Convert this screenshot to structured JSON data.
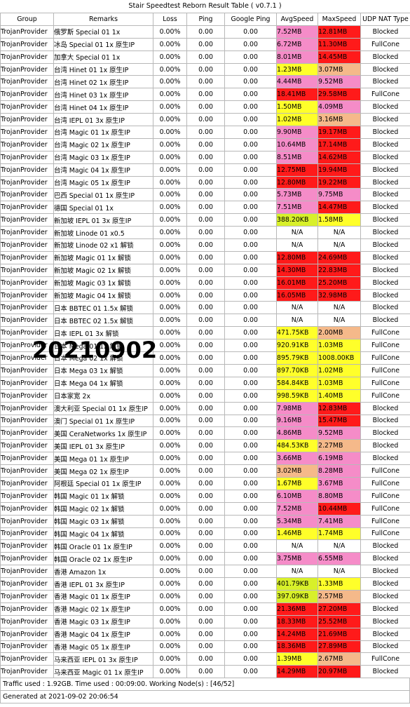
{
  "title": "Stair Speedtest Reborn Result Table ( v0.7.1 )",
  "columns": [
    "Group",
    "Remarks",
    "Loss",
    "Ping",
    "Google Ping",
    "AvgSpeed",
    "MaxSpeed",
    "UDP NAT Type"
  ],
  "colors": {
    "red": "#ff1a1a",
    "pink": "#f58cc8",
    "yellow": "#ffff2a",
    "light_yellow": "#ffff66",
    "lime": "#d8f02a",
    "orange": "#f5b98a",
    "white": "#ffffff"
  },
  "rows": [
    {
      "group": "TrojanProvider",
      "remarks": "俄罗斯 Special 01 1x",
      "loss": "0.00%",
      "ping": "0.00",
      "gping": "0.00",
      "avg": "7.52MB",
      "avg_color": "pink",
      "max": "12.81MB",
      "max_color": "red",
      "nat": "Blocked"
    },
    {
      "group": "TrojanProvider",
      "remarks": "冰岛 Special 01 1x 原生IP",
      "loss": "0.00%",
      "ping": "0.00",
      "gping": "0.00",
      "avg": "6.72MB",
      "avg_color": "pink",
      "max": "11.30MB",
      "max_color": "red",
      "nat": "FullCone"
    },
    {
      "group": "TrojanProvider",
      "remarks": "加拿大 Special 01 1x",
      "loss": "0.00%",
      "ping": "0.00",
      "gping": "0.00",
      "avg": "8.01MB",
      "avg_color": "pink",
      "max": "14.45MB",
      "max_color": "red",
      "nat": "Blocked"
    },
    {
      "group": "TrojanProvider",
      "remarks": "台湾 Hinet 01 1x 原生IP",
      "loss": "0.00%",
      "ping": "0.00",
      "gping": "0.00",
      "avg": "1.23MB",
      "avg_color": "yellow",
      "max": "3.07MB",
      "max_color": "orange",
      "nat": "Blocked"
    },
    {
      "group": "TrojanProvider",
      "remarks": "台湾 Hinet 02 1x 原生IP",
      "loss": "0.00%",
      "ping": "0.00",
      "gping": "0.00",
      "avg": "4.44MB",
      "avg_color": "pink",
      "max": "9.52MB",
      "max_color": "pink",
      "nat": "Blocked"
    },
    {
      "group": "TrojanProvider",
      "remarks": "台湾 Hinet 03 1x 原生IP",
      "loss": "0.00%",
      "ping": "0.00",
      "gping": "0.00",
      "avg": "18.41MB",
      "avg_color": "red",
      "max": "29.58MB",
      "max_color": "red",
      "nat": "FullCone"
    },
    {
      "group": "TrojanProvider",
      "remarks": "台湾 Hinet 04 1x 原生IP",
      "loss": "0.00%",
      "ping": "0.00",
      "gping": "0.00",
      "avg": "1.50MB",
      "avg_color": "yellow",
      "max": "4.09MB",
      "max_color": "pink",
      "nat": "Blocked"
    },
    {
      "group": "TrojanProvider",
      "remarks": "台湾 IEPL 01 3x 原生IP",
      "loss": "0.00%",
      "ping": "0.00",
      "gping": "0.00",
      "avg": "1.02MB",
      "avg_color": "yellow",
      "max": "3.16MB",
      "max_color": "orange",
      "nat": "Blocked"
    },
    {
      "group": "TrojanProvider",
      "remarks": "台湾 Magic 01 1x 原生IP",
      "loss": "0.00%",
      "ping": "0.00",
      "gping": "0.00",
      "avg": "9.90MB",
      "avg_color": "pink",
      "max": "19.17MB",
      "max_color": "red",
      "nat": "Blocked"
    },
    {
      "group": "TrojanProvider",
      "remarks": "台湾 Magic 02 1x 原生IP",
      "loss": "0.00%",
      "ping": "0.00",
      "gping": "0.00",
      "avg": "10.64MB",
      "avg_color": "pink",
      "max": "17.14MB",
      "max_color": "red",
      "nat": "Blocked"
    },
    {
      "group": "TrojanProvider",
      "remarks": "台湾 Magic 03 1x 原生IP",
      "loss": "0.00%",
      "ping": "0.00",
      "gping": "0.00",
      "avg": "8.51MB",
      "avg_color": "pink",
      "max": "14.62MB",
      "max_color": "red",
      "nat": "Blocked"
    },
    {
      "group": "TrojanProvider",
      "remarks": "台湾 Magic 04 1x 原生IP",
      "loss": "0.00%",
      "ping": "0.00",
      "gping": "0.00",
      "avg": "12.75MB",
      "avg_color": "red",
      "max": "19.94MB",
      "max_color": "red",
      "nat": "Blocked"
    },
    {
      "group": "TrojanProvider",
      "remarks": "台湾 Magic 05 1x 原生IP",
      "loss": "0.00%",
      "ping": "0.00",
      "gping": "0.00",
      "avg": "12.80MB",
      "avg_color": "red",
      "max": "19.22MB",
      "max_color": "red",
      "nat": "Blocked"
    },
    {
      "group": "TrojanProvider",
      "remarks": "巴西 Special 01 1x 原生IP",
      "loss": "0.00%",
      "ping": "0.00",
      "gping": "0.00",
      "avg": "5.73MB",
      "avg_color": "pink",
      "max": "9.75MB",
      "max_color": "pink",
      "nat": "Blocked"
    },
    {
      "group": "TrojanProvider",
      "remarks": "德国 Special 01 1x",
      "loss": "0.00%",
      "ping": "0.00",
      "gping": "0.00",
      "avg": "7.51MB",
      "avg_color": "pink",
      "max": "14.47MB",
      "max_color": "red",
      "nat": "Blocked"
    },
    {
      "group": "TrojanProvider",
      "remarks": "新加坡 IEPL 01 3x 原生IP",
      "loss": "0.00%",
      "ping": "0.00",
      "gping": "0.00",
      "avg": "388.20KB",
      "avg_color": "lime",
      "max": "1.58MB",
      "max_color": "yellow",
      "nat": "Blocked"
    },
    {
      "group": "TrojanProvider",
      "remarks": "新加坡 Linode 01 x0.5",
      "loss": "0.00%",
      "ping": "0.00",
      "gping": "0.00",
      "avg": "N/A",
      "avg_color": "white",
      "max": "N/A",
      "max_color": "white",
      "nat": "Blocked"
    },
    {
      "group": "TrojanProvider",
      "remarks": "新加坡 Linode 02 x1 解锁",
      "loss": "0.00%",
      "ping": "0.00",
      "gping": "0.00",
      "avg": "N/A",
      "avg_color": "white",
      "max": "N/A",
      "max_color": "white",
      "nat": "Blocked"
    },
    {
      "group": "TrojanProvider",
      "remarks": "新加坡 Magic 01 1x 解锁",
      "loss": "0.00%",
      "ping": "0.00",
      "gping": "0.00",
      "avg": "12.80MB",
      "avg_color": "red",
      "max": "24.69MB",
      "max_color": "red",
      "nat": "Blocked"
    },
    {
      "group": "TrojanProvider",
      "remarks": "新加坡 Magic 02 1x 解锁",
      "loss": "0.00%",
      "ping": "0.00",
      "gping": "0.00",
      "avg": "14.30MB",
      "avg_color": "red",
      "max": "22.83MB",
      "max_color": "red",
      "nat": "Blocked"
    },
    {
      "group": "TrojanProvider",
      "remarks": "新加坡 Magic 03 1x 解锁",
      "loss": "0.00%",
      "ping": "0.00",
      "gping": "0.00",
      "avg": "16.01MB",
      "avg_color": "red",
      "max": "25.20MB",
      "max_color": "red",
      "nat": "Blocked"
    },
    {
      "group": "TrojanProvider",
      "remarks": "新加坡 Magic 04 1x 解锁",
      "loss": "0.00%",
      "ping": "0.00",
      "gping": "0.00",
      "avg": "16.05MB",
      "avg_color": "red",
      "max": "32.98MB",
      "max_color": "red",
      "nat": "Blocked"
    },
    {
      "group": "TrojanProvider",
      "remarks": "日本 BBTEC 01 1.5x 解锁",
      "loss": "0.00%",
      "ping": "0.00",
      "gping": "0.00",
      "avg": "N/A",
      "avg_color": "white",
      "max": "N/A",
      "max_color": "white",
      "nat": "Blocked"
    },
    {
      "group": "TrojanProvider",
      "remarks": "日本 BBTEC 02 1.5x 解锁",
      "loss": "0.00%",
      "ping": "0.00",
      "gping": "0.00",
      "avg": "N/A",
      "avg_color": "white",
      "max": "N/A",
      "max_color": "white",
      "nat": "Blocked"
    },
    {
      "group": "TrojanProvider",
      "remarks": "日本 IEPL 01 3x 解锁",
      "loss": "0.00%",
      "ping": "0.00",
      "gping": "0.00",
      "avg": "471.75KB",
      "avg_color": "yellow",
      "max": "2.00MB",
      "max_color": "orange",
      "nat": "FullCone"
    },
    {
      "group": "TrojanProvider",
      "remarks": "日本 Mega 01 1x 解锁",
      "loss": "0.00%",
      "ping": "0.00",
      "gping": "0.00",
      "avg": "920.91KB",
      "avg_color": "yellow",
      "max": "1.03MB",
      "max_color": "yellow",
      "nat": "FullCone"
    },
    {
      "group": "TrojanProvider",
      "remarks": "日本 Mega 02 1x 解锁",
      "loss": "0.00%",
      "ping": "0.00",
      "gping": "0.00",
      "avg": "895.79KB",
      "avg_color": "yellow",
      "max": "1008.00KB",
      "max_color": "yellow",
      "nat": "FullCone"
    },
    {
      "group": "TrojanProvider",
      "remarks": "日本 Mega 03 1x 解锁",
      "loss": "0.00%",
      "ping": "0.00",
      "gping": "0.00",
      "avg": "897.70KB",
      "avg_color": "yellow",
      "max": "1.02MB",
      "max_color": "yellow",
      "nat": "FullCone"
    },
    {
      "group": "TrojanProvider",
      "remarks": "日本 Mega 04 1x 解锁",
      "loss": "0.00%",
      "ping": "0.00",
      "gping": "0.00",
      "avg": "584.84KB",
      "avg_color": "yellow",
      "max": "1.03MB",
      "max_color": "yellow",
      "nat": "FullCone"
    },
    {
      "group": "TrojanProvider",
      "remarks": "日本家宽 2x",
      "loss": "0.00%",
      "ping": "0.00",
      "gping": "0.00",
      "avg": "998.59KB",
      "avg_color": "yellow",
      "max": "1.40MB",
      "max_color": "yellow",
      "nat": "FullCone"
    },
    {
      "group": "TrojanProvider",
      "remarks": "澳大利亚 Special 01 1x 原生IP",
      "loss": "0.00%",
      "ping": "0.00",
      "gping": "0.00",
      "avg": "7.98MB",
      "avg_color": "pink",
      "max": "12.83MB",
      "max_color": "red",
      "nat": "Blocked"
    },
    {
      "group": "TrojanProvider",
      "remarks": "澳门 Special 01 1x 原生IP",
      "loss": "0.00%",
      "ping": "0.00",
      "gping": "0.00",
      "avg": "9.16MB",
      "avg_color": "pink",
      "max": "15.47MB",
      "max_color": "red",
      "nat": "Blocked"
    },
    {
      "group": "TrojanProvider",
      "remarks": "美国 CeraNetworks 1x 原生IP",
      "loss": "0.00%",
      "ping": "0.00",
      "gping": "0.00",
      "avg": "4.86MB",
      "avg_color": "pink",
      "max": "9.52MB",
      "max_color": "pink",
      "nat": "Blocked"
    },
    {
      "group": "TrojanProvider",
      "remarks": "美国 IEPL 01 3x 原生IP",
      "loss": "0.00%",
      "ping": "0.00",
      "gping": "0.00",
      "avg": "484.53KB",
      "avg_color": "yellow",
      "max": "2.27MB",
      "max_color": "orange",
      "nat": "Blocked"
    },
    {
      "group": "TrojanProvider",
      "remarks": "美国 Mega 01 1x 原生IP",
      "loss": "0.00%",
      "ping": "0.00",
      "gping": "0.00",
      "avg": "3.66MB",
      "avg_color": "pink",
      "max": "6.19MB",
      "max_color": "pink",
      "nat": "Blocked"
    },
    {
      "group": "TrojanProvider",
      "remarks": "美国 Mega 02 1x 原生IP",
      "loss": "0.00%",
      "ping": "0.00",
      "gping": "0.00",
      "avg": "3.02MB",
      "avg_color": "orange",
      "max": "8.28MB",
      "max_color": "pink",
      "nat": "FullCone"
    },
    {
      "group": "TrojanProvider",
      "remarks": "阿根廷 Special 01 1x 原生IP",
      "loss": "0.00%",
      "ping": "0.00",
      "gping": "0.00",
      "avg": "1.67MB",
      "avg_color": "yellow",
      "max": "3.67MB",
      "max_color": "pink",
      "nat": "FullCone"
    },
    {
      "group": "TrojanProvider",
      "remarks": "韩国 Magic 01 1x 解锁",
      "loss": "0.00%",
      "ping": "0.00",
      "gping": "0.00",
      "avg": "6.10MB",
      "avg_color": "pink",
      "max": "8.80MB",
      "max_color": "pink",
      "nat": "FullCone"
    },
    {
      "group": "TrojanProvider",
      "remarks": "韩国 Magic 02 1x 解锁",
      "loss": "0.00%",
      "ping": "0.00",
      "gping": "0.00",
      "avg": "7.52MB",
      "avg_color": "pink",
      "max": "10.44MB",
      "max_color": "red",
      "nat": "FullCone"
    },
    {
      "group": "TrojanProvider",
      "remarks": "韩国 Magic 03 1x 解锁",
      "loss": "0.00%",
      "ping": "0.00",
      "gping": "0.00",
      "avg": "5.34MB",
      "avg_color": "pink",
      "max": "7.41MB",
      "max_color": "pink",
      "nat": "FullCone"
    },
    {
      "group": "TrojanProvider",
      "remarks": "韩国 Magic 04 1x 解锁",
      "loss": "0.00%",
      "ping": "0.00",
      "gping": "0.00",
      "avg": "1.46MB",
      "avg_color": "yellow",
      "max": "1.74MB",
      "max_color": "yellow",
      "nat": "FullCone"
    },
    {
      "group": "TrojanProvider",
      "remarks": "韩国 Oracle 01 1x 原生IP",
      "loss": "0.00%",
      "ping": "0.00",
      "gping": "0.00",
      "avg": "N/A",
      "avg_color": "white",
      "max": "N/A",
      "max_color": "white",
      "nat": "Blocked"
    },
    {
      "group": "TrojanProvider",
      "remarks": "韩国 Oracle 02 1x 原生IP",
      "loss": "0.00%",
      "ping": "0.00",
      "gping": "0.00",
      "avg": "3.75MB",
      "avg_color": "pink",
      "max": "6.55MB",
      "max_color": "pink",
      "nat": "Blocked"
    },
    {
      "group": "TrojanProvider",
      "remarks": "香港 Amazon 1x",
      "loss": "0.00%",
      "ping": "0.00",
      "gping": "0.00",
      "avg": "N/A",
      "avg_color": "white",
      "max": "N/A",
      "max_color": "white",
      "nat": "Blocked"
    },
    {
      "group": "TrojanProvider",
      "remarks": "香港 IEPL 01 3x 原生IP",
      "loss": "0.00%",
      "ping": "0.00",
      "gping": "0.00",
      "avg": "401.79KB",
      "avg_color": "lime",
      "max": "1.33MB",
      "max_color": "yellow",
      "nat": "Blocked"
    },
    {
      "group": "TrojanProvider",
      "remarks": "香港 Magic 01 1x 原生IP",
      "loss": "0.00%",
      "ping": "0.00",
      "gping": "0.00",
      "avg": "397.09KB",
      "avg_color": "lime",
      "max": "2.57MB",
      "max_color": "orange",
      "nat": "Blocked"
    },
    {
      "group": "TrojanProvider",
      "remarks": "香港 Magic 02 1x 原生IP",
      "loss": "0.00%",
      "ping": "0.00",
      "gping": "0.00",
      "avg": "21.36MB",
      "avg_color": "red",
      "max": "27.20MB",
      "max_color": "red",
      "nat": "Blocked"
    },
    {
      "group": "TrojanProvider",
      "remarks": "香港 Magic 03 1x 原生IP",
      "loss": "0.00%",
      "ping": "0.00",
      "gping": "0.00",
      "avg": "18.33MB",
      "avg_color": "red",
      "max": "25.52MB",
      "max_color": "red",
      "nat": "Blocked"
    },
    {
      "group": "TrojanProvider",
      "remarks": "香港 Magic 04 1x 原生IP",
      "loss": "0.00%",
      "ping": "0.00",
      "gping": "0.00",
      "avg": "14.24MB",
      "avg_color": "red",
      "max": "21.69MB",
      "max_color": "red",
      "nat": "Blocked"
    },
    {
      "group": "TrojanProvider",
      "remarks": "香港 Magic 05 1x 原生IP",
      "loss": "0.00%",
      "ping": "0.00",
      "gping": "0.00",
      "avg": "18.36MB",
      "avg_color": "red",
      "max": "27.89MB",
      "max_color": "red",
      "nat": "Blocked"
    },
    {
      "group": "TrojanProvider",
      "remarks": "马来西亚 IEPL 01 3x 原生IP",
      "loss": "0.00%",
      "ping": "0.00",
      "gping": "0.00",
      "avg": "1.39MB",
      "avg_color": "yellow",
      "max": "2.67MB",
      "max_color": "orange",
      "nat": "FullCone"
    },
    {
      "group": "TrojanProvider",
      "remarks": "马来西亚 Magic 01 1x 原生IP",
      "loss": "0.00%",
      "ping": "0.00",
      "gping": "0.00",
      "avg": "14.29MB",
      "avg_color": "red",
      "max": "20.97MB",
      "max_color": "red",
      "nat": "Blocked"
    }
  ],
  "footer": {
    "traffic": "Traffic used : 1.92GB. Time used : 00:09:00. Working Node(s) : [46/52]",
    "generated": "Generated at 2021-09-02 20:06:54"
  },
  "watermark": "20210902"
}
